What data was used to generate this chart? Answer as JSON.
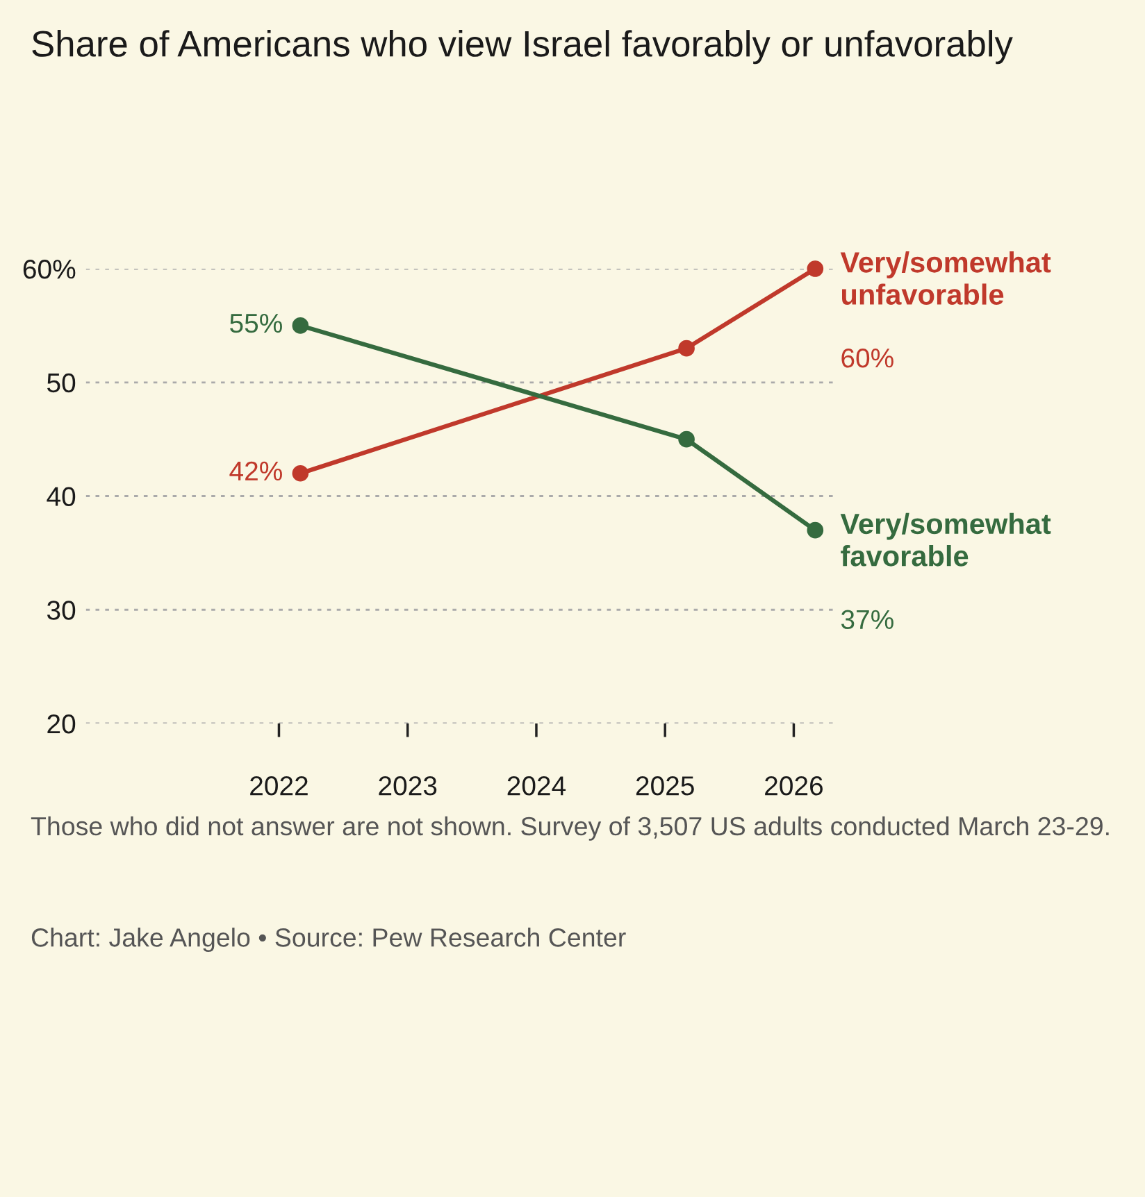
{
  "chart_data": {
    "type": "line",
    "title": "Share of Americans who view Israel favorably or unfavorably",
    "x": [
      "2022-03",
      "2025-03",
      "2026-03"
    ],
    "series": [
      {
        "name": "Very/somewhat unfavorable",
        "color": "#c0392b",
        "values": [
          42,
          53,
          60
        ],
        "value_labels": [
          "42%",
          null,
          "60%"
        ]
      },
      {
        "name": "Very/somewhat favorable",
        "color": "#356b3f",
        "values": [
          55,
          45,
          37
        ],
        "value_labels": [
          "55%",
          null,
          "37%"
        ]
      }
    ],
    "xlim": [
      "2020-07",
      "2026-05"
    ],
    "xticks": [
      "2022",
      "2023",
      "2024",
      "2025",
      "2026"
    ],
    "ylim": [
      20,
      60
    ],
    "yticks": [
      20,
      30,
      40,
      50,
      {
        "value": 60,
        "label": "60%"
      }
    ],
    "grid": "y",
    "marker": "circle",
    "line_style": "solid",
    "annotations": [
      "Those who did not answer are not shown. Survey of 3,507 US adults conducted March 23-29.",
      "Chart: Jake Angelo • Source: Pew Research Center"
    ]
  }
}
